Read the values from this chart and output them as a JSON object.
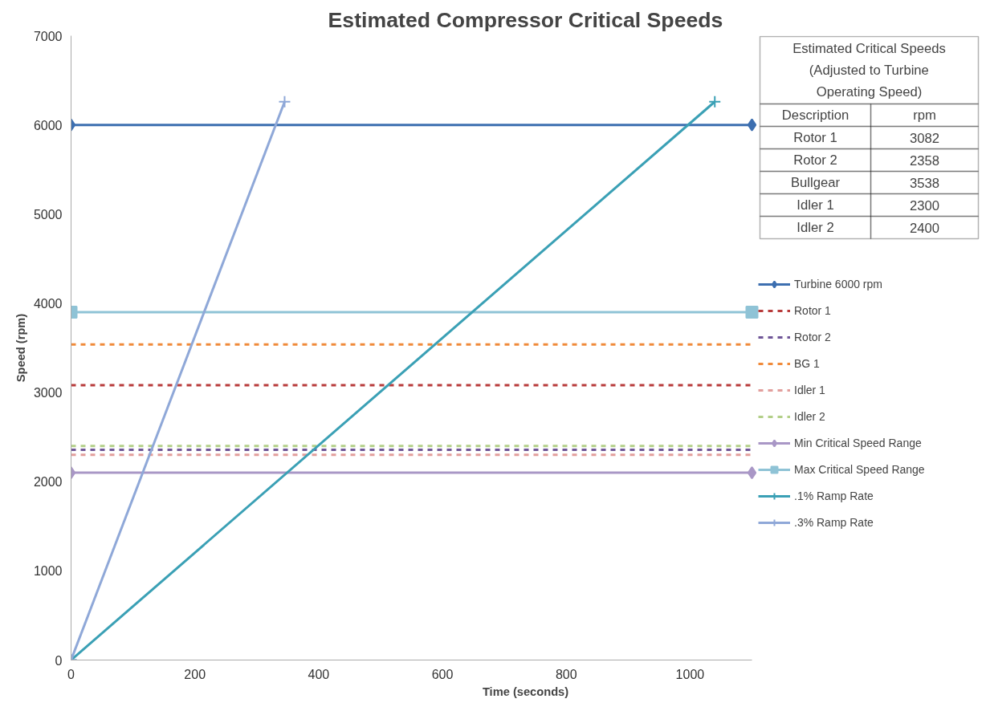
{
  "chart_data": {
    "type": "line",
    "title": "Estimated Compressor Critical Speeds",
    "xlabel": "Time (seconds)",
    "ylabel": "Speed (rpm)",
    "xlim": [
      0,
      1100
    ],
    "ylim": [
      0,
      7000
    ],
    "xticks": [
      0,
      200,
      400,
      600,
      800,
      1000
    ],
    "yticks": [
      0,
      1000,
      2000,
      3000,
      4000,
      5000,
      6000,
      7000
    ],
    "grid": false,
    "legend": "right",
    "series": [
      {
        "name": "Turbine 6000 rpm",
        "color": "#3d6fb0",
        "x": [
          0,
          1100
        ],
        "values": [
          6000,
          6000
        ],
        "marker": "diamond",
        "line_style": "solid"
      },
      {
        "name": "Rotor 1",
        "color": "#b83b3b",
        "x": [
          0,
          1100
        ],
        "values": [
          3082,
          3082
        ],
        "marker": "none",
        "line_style": "dashed"
      },
      {
        "name": "Rotor 2",
        "color": "#6f5597",
        "x": [
          0,
          1100
        ],
        "values": [
          2358,
          2358
        ],
        "marker": "none",
        "line_style": "dashed"
      },
      {
        "name": "BG 1",
        "color": "#f08a3a",
        "x": [
          0,
          1100
        ],
        "values": [
          3538,
          3538
        ],
        "marker": "none",
        "line_style": "dashed"
      },
      {
        "name": "Idler 1",
        "color": "#e29e9c",
        "x": [
          0,
          1100
        ],
        "values": [
          2300,
          2300
        ],
        "marker": "none",
        "line_style": "dashed"
      },
      {
        "name": "Idler 2",
        "color": "#b3cf88",
        "x": [
          0,
          1100
        ],
        "values": [
          2400,
          2400
        ],
        "marker": "none",
        "line_style": "dashed"
      },
      {
        "name": "Min Critical Speed Range",
        "color": "#a997c6",
        "x": [
          0,
          1100
        ],
        "values": [
          2100,
          2100
        ],
        "marker": "diamond",
        "line_style": "solid"
      },
      {
        "name": "Max Critical Speed Range",
        "color": "#8fc3d6",
        "x": [
          0,
          1100
        ],
        "values": [
          3900,
          3900
        ],
        "marker": "square",
        "line_style": "solid"
      },
      {
        "name": ".1% Ramp Rate",
        "color": "#3aa0b5",
        "x": [
          0,
          1040
        ],
        "values": [
          0,
          6260
        ],
        "marker": "cross",
        "line_style": "solid"
      },
      {
        "name": ".3% Ramp Rate",
        "color": "#8fa8d8",
        "x": [
          0,
          345
        ],
        "values": [
          0,
          6260
        ],
        "marker": "cross",
        "line_style": "solid"
      }
    ],
    "annotations": [
      "Estimated Critical Speeds (Adjusted to Turbine Operating Speed)",
      "Description",
      "rpm",
      "Rotor 1",
      "3082",
      "Rotor 2",
      "2358",
      "Bullgear",
      "3538",
      "Idler 1",
      "2300",
      "Idler 2",
      "2400"
    ]
  }
}
